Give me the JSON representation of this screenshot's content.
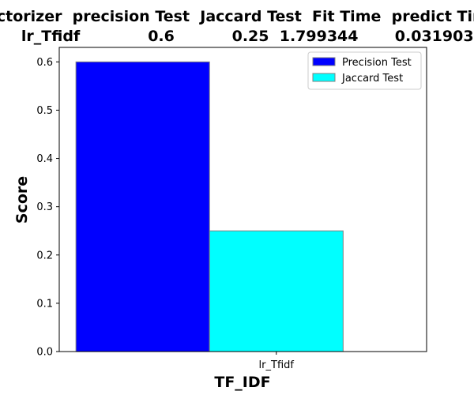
{
  "chart_data": {
    "type": "bar",
    "title_lines": [
      "Vectorizer  precision Test  Jaccard Test  Fit Time  predict Time",
      "    lr_Tfidf             0.6           0.25  1.799344       0.031903"
    ],
    "categories": [
      "lr_Tfidf"
    ],
    "series": [
      {
        "name": "Precision Test",
        "values": [
          0.6
        ],
        "color": "#0000ff"
      },
      {
        "name": "Jaccard Test",
        "values": [
          0.25
        ],
        "color": "#00ffff"
      }
    ],
    "xlabel": "TF_IDF",
    "ylabel": "Score",
    "ylim": [
      0,
      0.63
    ],
    "yticks": [
      0.0,
      0.1,
      0.2,
      0.3,
      0.4,
      0.5,
      0.6
    ],
    "ytick_labels": [
      "0.0",
      "0.1",
      "0.2",
      "0.3",
      "0.4",
      "0.5",
      "0.6"
    ],
    "grid": false,
    "legend_position": "top-right",
    "bar_edge_color": "#808080"
  }
}
